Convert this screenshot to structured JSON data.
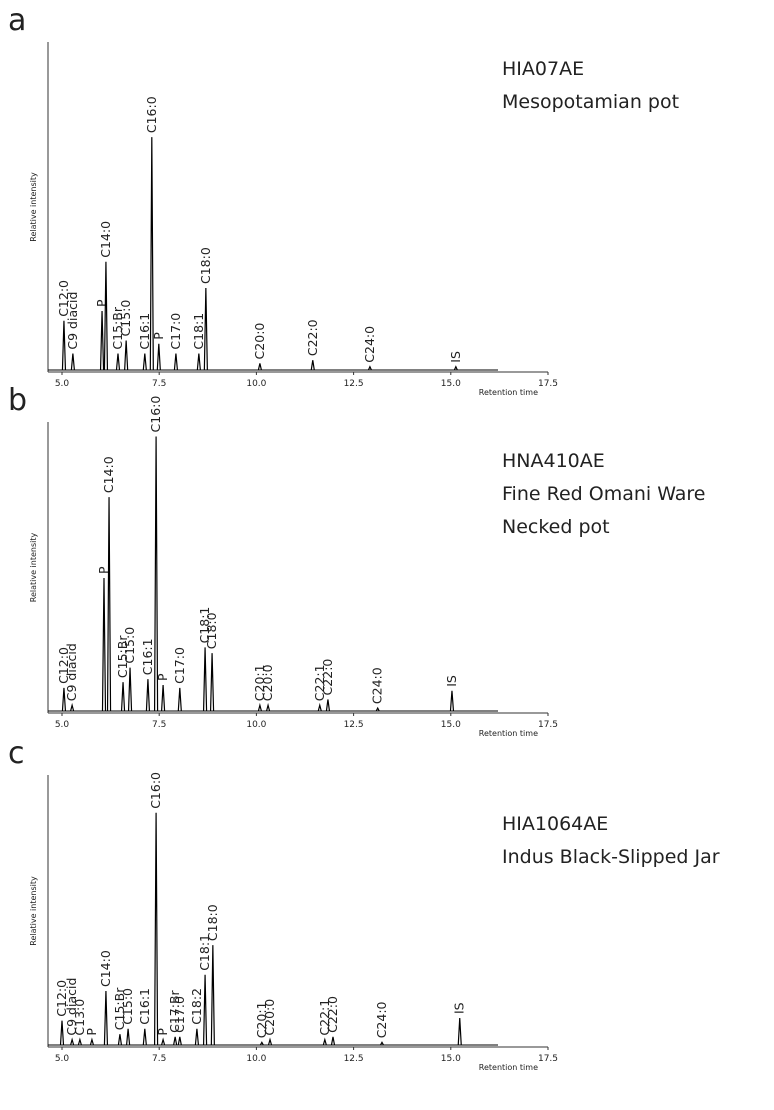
{
  "chart_data": [
    {
      "type": "peaks",
      "panel_label": "a",
      "annotations": [
        "HIA07AE",
        "Mesopotamian pot"
      ],
      "x_label": "Retention time",
      "y_label": "Relative intensity",
      "color": "#000000",
      "xlim": [
        4.64,
        17.5
      ],
      "ylim": [
        0,
        100
      ],
      "xticks": [
        {
          "value": 5,
          "label": "5.0"
        },
        {
          "value": 7.5,
          "label": "7.5"
        },
        {
          "value": 10,
          "label": "10.0"
        },
        {
          "value": 12.5,
          "label": "12.5"
        },
        {
          "value": 15,
          "label": "15.0"
        },
        {
          "value": 17.5,
          "label": "17.5"
        }
      ],
      "peak_labels": [
        "C12:0",
        "C9 diacid",
        "P",
        "C14:0",
        "C15:Br",
        "C15:0",
        "C16:1",
        "C16:0",
        "P",
        "C17:0",
        "C18:1",
        "C18:0",
        "C20:0",
        "C22:0",
        "C24:0",
        "IS"
      ],
      "x": [
        5.05,
        5.28,
        6.03,
        6.13,
        6.44,
        6.65,
        7.13,
        7.31,
        7.49,
        7.93,
        8.52,
        8.7,
        10.09,
        11.45,
        12.92,
        15.13
      ],
      "values": [
        15,
        5,
        18,
        33,
        5,
        9,
        5,
        71,
        8,
        5,
        5,
        25,
        2,
        3,
        1,
        1
      ]
    },
    {
      "type": "peaks",
      "panel_label": "b",
      "annotations": [
        "HNA410AE",
        "Fine Red Omani Ware",
        "Necked pot"
      ],
      "x_label": "Retention time",
      "y_label": "Relative intensity",
      "color": "#000000",
      "xlim": [
        4.64,
        17.5
      ],
      "ylim": [
        0,
        100
      ],
      "xticks": [
        {
          "value": 5,
          "label": "5.0"
        },
        {
          "value": 7.5,
          "label": "7.5"
        },
        {
          "value": 10,
          "label": "10.0"
        },
        {
          "value": 12.5,
          "label": "12.5"
        },
        {
          "value": 15,
          "label": "15.0"
        },
        {
          "value": 17.5,
          "label": "17.5"
        }
      ],
      "peak_labels": [
        "C12:0",
        "C9 diacid",
        "P",
        "C14:0",
        "C15:Br",
        "C15:0",
        "C16:1",
        "C16:0",
        "P",
        "C17:0",
        "C18:1",
        "C18:0",
        "C20:1",
        "C20:0",
        "C22:1",
        "C22:0",
        "C24:0",
        "IS"
      ],
      "x": [
        5.05,
        5.26,
        6.08,
        6.21,
        6.57,
        6.75,
        7.21,
        7.42,
        7.6,
        8.03,
        8.68,
        8.86,
        10.09,
        10.3,
        11.63,
        11.84,
        13.12,
        15.03
      ],
      "values": [
        8,
        2,
        46,
        74,
        10,
        15,
        11,
        95,
        9,
        8,
        22,
        20,
        2,
        2,
        2,
        4,
        1,
        7
      ]
    },
    {
      "type": "peaks",
      "panel_label": "c",
      "annotations": [
        "HIA1064AE",
        "Indus Black-Slipped Jar"
      ],
      "x_label": "Retention time",
      "y_label": "Relative intensity",
      "color": "#000000",
      "xlim": [
        4.64,
        17.5
      ],
      "ylim": [
        0,
        100
      ],
      "xticks": [
        {
          "value": 5,
          "label": "5.0"
        },
        {
          "value": 7.5,
          "label": "7.5"
        },
        {
          "value": 10,
          "label": "10.0"
        },
        {
          "value": 12.5,
          "label": "12.5"
        },
        {
          "value": 15,
          "label": "15.0"
        },
        {
          "value": 17.5,
          "label": "17.5"
        }
      ],
      "peak_labels": [
        "C12:0",
        "C9 diacid",
        "C13:0",
        "P",
        "C14:0",
        "C15:Br",
        "C15:0",
        "C16:1",
        "C16:0",
        "P",
        "C17:Br",
        "C17:0",
        "C18:2",
        "C18:1",
        "C18:0",
        "C20:1",
        "C20:0",
        "C22:1",
        "C22:0",
        "C24:0",
        "IS"
      ],
      "x": [
        5.0,
        5.26,
        5.46,
        5.77,
        6.13,
        6.49,
        6.7,
        7.13,
        7.42,
        7.6,
        7.91,
        8.03,
        8.47,
        8.68,
        8.88,
        10.14,
        10.35,
        11.76,
        11.97,
        13.23,
        15.23
      ],
      "values": [
        9,
        2,
        2,
        2,
        20,
        4,
        6,
        6,
        86,
        2,
        3,
        3,
        6,
        26,
        37,
        1,
        2,
        2,
        3,
        1,
        10
      ]
    }
  ]
}
